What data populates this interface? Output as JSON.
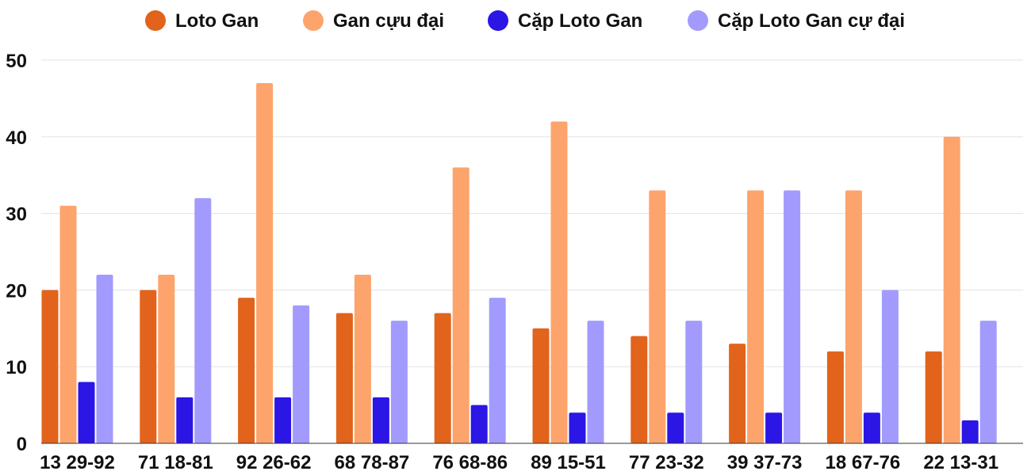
{
  "chart_data": {
    "type": "bar",
    "title": "",
    "xlabel": "",
    "ylabel": "",
    "ylim": [
      0,
      50
    ],
    "yticks": [
      0,
      10,
      20,
      30,
      40,
      50
    ],
    "grid": true,
    "legend_position": "top",
    "categories": [
      "13 29-92",
      "71 18-81",
      "92 26-62",
      "68 78-87",
      "76 68-86",
      "89 15-51",
      "77 23-32",
      "39 37-73",
      "18 67-76",
      "22 13-31"
    ],
    "series": [
      {
        "name": "Loto Gan",
        "color": "#e2631b",
        "values": [
          20,
          20,
          19,
          17,
          17,
          15,
          14,
          13,
          12,
          12
        ]
      },
      {
        "name": "Gan cựu đại",
        "color": "#fda46c",
        "values": [
          31,
          22,
          47,
          22,
          36,
          42,
          33,
          33,
          33,
          40
        ]
      },
      {
        "name": "Cặp Loto Gan",
        "color": "#2b16e6",
        "values": [
          8,
          6,
          6,
          6,
          5,
          4,
          4,
          4,
          4,
          3
        ]
      },
      {
        "name": "Cặp Loto Gan cự đại",
        "color": "#a29bfd",
        "values": [
          22,
          32,
          18,
          16,
          19,
          16,
          16,
          33,
          20,
          16
        ]
      }
    ]
  }
}
